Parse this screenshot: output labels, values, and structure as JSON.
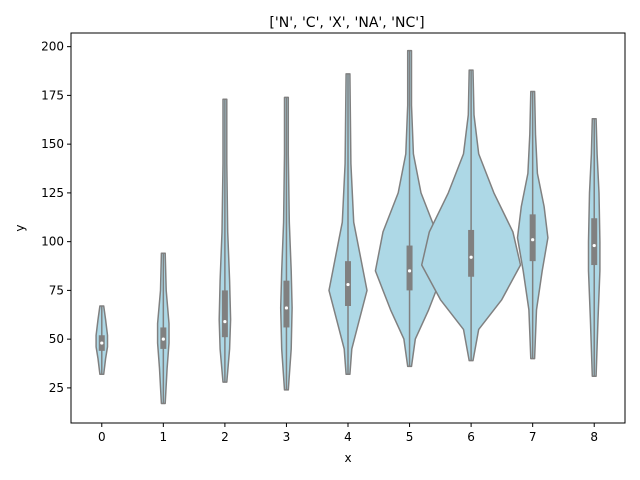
{
  "chart_data": {
    "type": "violin",
    "title": "['N', 'C', 'X', 'NA', 'NC']",
    "xlabel": "x",
    "ylabel": "y",
    "categories": [
      "0",
      "1",
      "2",
      "3",
      "4",
      "5",
      "6",
      "7",
      "8"
    ],
    "ylim": [
      7,
      207
    ],
    "yticks": [
      25,
      50,
      75,
      100,
      125,
      150,
      175,
      200
    ],
    "grid": false,
    "fill_color": "#add8e6",
    "line_color": "#808080",
    "violins": [
      {
        "category": "0",
        "min": 32,
        "q1": 44,
        "median": 48,
        "q3": 52,
        "max": 67,
        "profile": [
          [
            32,
            1
          ],
          [
            40,
            2
          ],
          [
            46,
            3
          ],
          [
            52,
            3
          ],
          [
            60,
            2
          ],
          [
            67,
            1
          ]
        ]
      },
      {
        "category": "1",
        "min": 17,
        "q1": 45,
        "median": 50,
        "q3": 56,
        "max": 94,
        "profile": [
          [
            17,
            1
          ],
          [
            35,
            2
          ],
          [
            48,
            3
          ],
          [
            58,
            3
          ],
          [
            75,
            1.5
          ],
          [
            94,
            1
          ]
        ]
      },
      {
        "category": "2",
        "min": 28,
        "q1": 51,
        "median": 59,
        "q3": 75,
        "max": 173,
        "profile": [
          [
            28,
            1
          ],
          [
            45,
            2.5
          ],
          [
            60,
            3
          ],
          [
            80,
            2.5
          ],
          [
            105,
            1.5
          ],
          [
            140,
            1
          ],
          [
            173,
            1
          ]
        ]
      },
      {
        "category": "3",
        "min": 24,
        "q1": 56,
        "median": 66,
        "q3": 80,
        "max": 174,
        "profile": [
          [
            24,
            1
          ],
          [
            45,
            2.5
          ],
          [
            66,
            3
          ],
          [
            85,
            2.5
          ],
          [
            110,
            1.5
          ],
          [
            145,
            1
          ],
          [
            174,
            1
          ]
        ]
      },
      {
        "category": "4",
        "min": 32,
        "q1": 67,
        "median": 78,
        "q3": 90,
        "max": 186,
        "profile": [
          [
            32,
            1
          ],
          [
            45,
            2
          ],
          [
            60,
            6
          ],
          [
            75,
            10
          ],
          [
            90,
            7
          ],
          [
            110,
            3
          ],
          [
            140,
            1.5
          ],
          [
            186,
            1
          ]
        ]
      },
      {
        "category": "5",
        "min": 36,
        "q1": 75,
        "median": 85,
        "q3": 98,
        "max": 198,
        "profile": [
          [
            36,
            1
          ],
          [
            50,
            3
          ],
          [
            65,
            10
          ],
          [
            85,
            18
          ],
          [
            105,
            14
          ],
          [
            125,
            6
          ],
          [
            145,
            2
          ],
          [
            170,
            1
          ],
          [
            198,
            1
          ]
        ]
      },
      {
        "category": "6",
        "min": 39,
        "q1": 82,
        "median": 92,
        "q3": 106,
        "max": 188,
        "profile": [
          [
            39,
            1
          ],
          [
            55,
            4
          ],
          [
            70,
            16
          ],
          [
            88,
            26
          ],
          [
            105,
            22
          ],
          [
            125,
            12
          ],
          [
            145,
            4
          ],
          [
            165,
            1.5
          ],
          [
            188,
            1
          ]
        ]
      },
      {
        "category": "7",
        "min": 40,
        "q1": 90,
        "median": 101,
        "q3": 114,
        "max": 177,
        "profile": [
          [
            40,
            1
          ],
          [
            65,
            2
          ],
          [
            85,
            5
          ],
          [
            102,
            8
          ],
          [
            118,
            6
          ],
          [
            135,
            2.5
          ],
          [
            155,
            1.5
          ],
          [
            177,
            1
          ]
        ]
      },
      {
        "category": "8",
        "min": 31,
        "q1": 88,
        "median": 98,
        "q3": 112,
        "max": 163,
        "profile": [
          [
            31,
            1
          ],
          [
            60,
            2
          ],
          [
            85,
            3
          ],
          [
            100,
            3
          ],
          [
            125,
            2.5
          ],
          [
            145,
            1.5
          ],
          [
            163,
            1
          ]
        ]
      }
    ]
  }
}
